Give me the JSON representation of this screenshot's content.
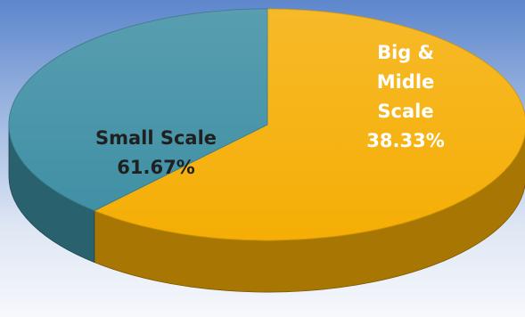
{
  "chart_data": {
    "type": "pie",
    "style": "3d",
    "slices": [
      {
        "label_lines": [
          "Small Scale"
        ],
        "percent_label": "61.67%",
        "value": 61.67,
        "color": "#F5AE05",
        "text_color": "#202020"
      },
      {
        "label_lines": [
          "Big &",
          "Midle",
          "Scale"
        ],
        "percent_label": "38.33%",
        "value": 38.33,
        "color": "#3D8EA3",
        "text_color": "#FFFFFF"
      }
    ],
    "title": "",
    "legend": "none"
  }
}
